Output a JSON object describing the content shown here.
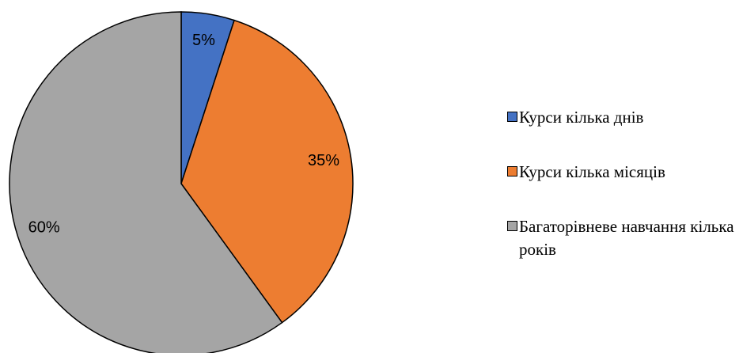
{
  "chart_data": {
    "type": "pie",
    "categories": [
      "Курси кілька днів",
      "Курси кілька місяців",
      "Багаторівневе навчання кілька років"
    ],
    "values": [
      5,
      35,
      60
    ],
    "value_labels": [
      "5%",
      "35%",
      "60%"
    ],
    "colors": [
      "#4472c4",
      "#ed7d31",
      "#a5a5a5"
    ],
    "legend": "right"
  }
}
